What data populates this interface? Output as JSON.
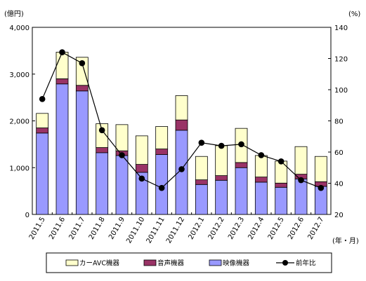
{
  "chart_data": {
    "type": "bar",
    "stacked": true,
    "categories": [
      "2011.5",
      "2011.6",
      "2011.7",
      "2011.8",
      "2011.9",
      "2011.10",
      "2011.11",
      "2011.12",
      "2012.1",
      "2012.2",
      "2012.3",
      "2012.4",
      "2012.5",
      "2012.6",
      "2012.7"
    ],
    "series": [
      {
        "name": "映像機器",
        "axis": "left",
        "color": "#9999ff",
        "values": [
          1740,
          2790,
          2640,
          1320,
          1260,
          900,
          1280,
          1800,
          640,
          730,
          1000,
          690,
          580,
          760,
          600
        ]
      },
      {
        "name": "音声機器",
        "axis": "left",
        "color": "#993366",
        "values": [
          110,
          110,
          120,
          110,
          100,
          170,
          120,
          220,
          100,
          100,
          110,
          110,
          90,
          100,
          100
        ]
      },
      {
        "name": "カーAVC機器",
        "axis": "left",
        "color": "#ffffcc",
        "values": [
          310,
          570,
          600,
          510,
          560,
          610,
          480,
          520,
          500,
          640,
          730,
          460,
          470,
          590,
          540
        ]
      },
      {
        "name": "前年比",
        "type": "line",
        "axis": "right",
        "color": "#000000",
        "values": [
          94,
          124,
          117,
          74,
          58,
          43,
          37,
          49,
          66,
          64,
          65,
          58,
          54,
          42,
          37
        ]
      }
    ],
    "left_axis": {
      "unit": "(億円)",
      "min": 0,
      "max": 4000,
      "ticks": [
        0,
        1000,
        2000,
        3000,
        4000
      ],
      "tick_labels": [
        "0",
        "1,000",
        "2,000",
        "3,000",
        "4,000"
      ]
    },
    "right_axis": {
      "unit": "(%)",
      "min": 20,
      "max": 140,
      "ticks": [
        20,
        40,
        60,
        80,
        100,
        120,
        140
      ],
      "tick_labels": [
        "20",
        "40",
        "60",
        "80",
        "100",
        "120",
        "140"
      ]
    },
    "x_unit": "(年・月)",
    "grid": false,
    "legend": {
      "placement": "bottom",
      "items": [
        {
          "label": "カーAVC機器",
          "kind": "box",
          "color": "#ffffcc"
        },
        {
          "label": "音声機器",
          "kind": "box",
          "color": "#993366"
        },
        {
          "label": "映像機器",
          "kind": "box",
          "color": "#9999ff"
        },
        {
          "label": "前年比",
          "kind": "line",
          "color": "#000000"
        }
      ]
    }
  }
}
